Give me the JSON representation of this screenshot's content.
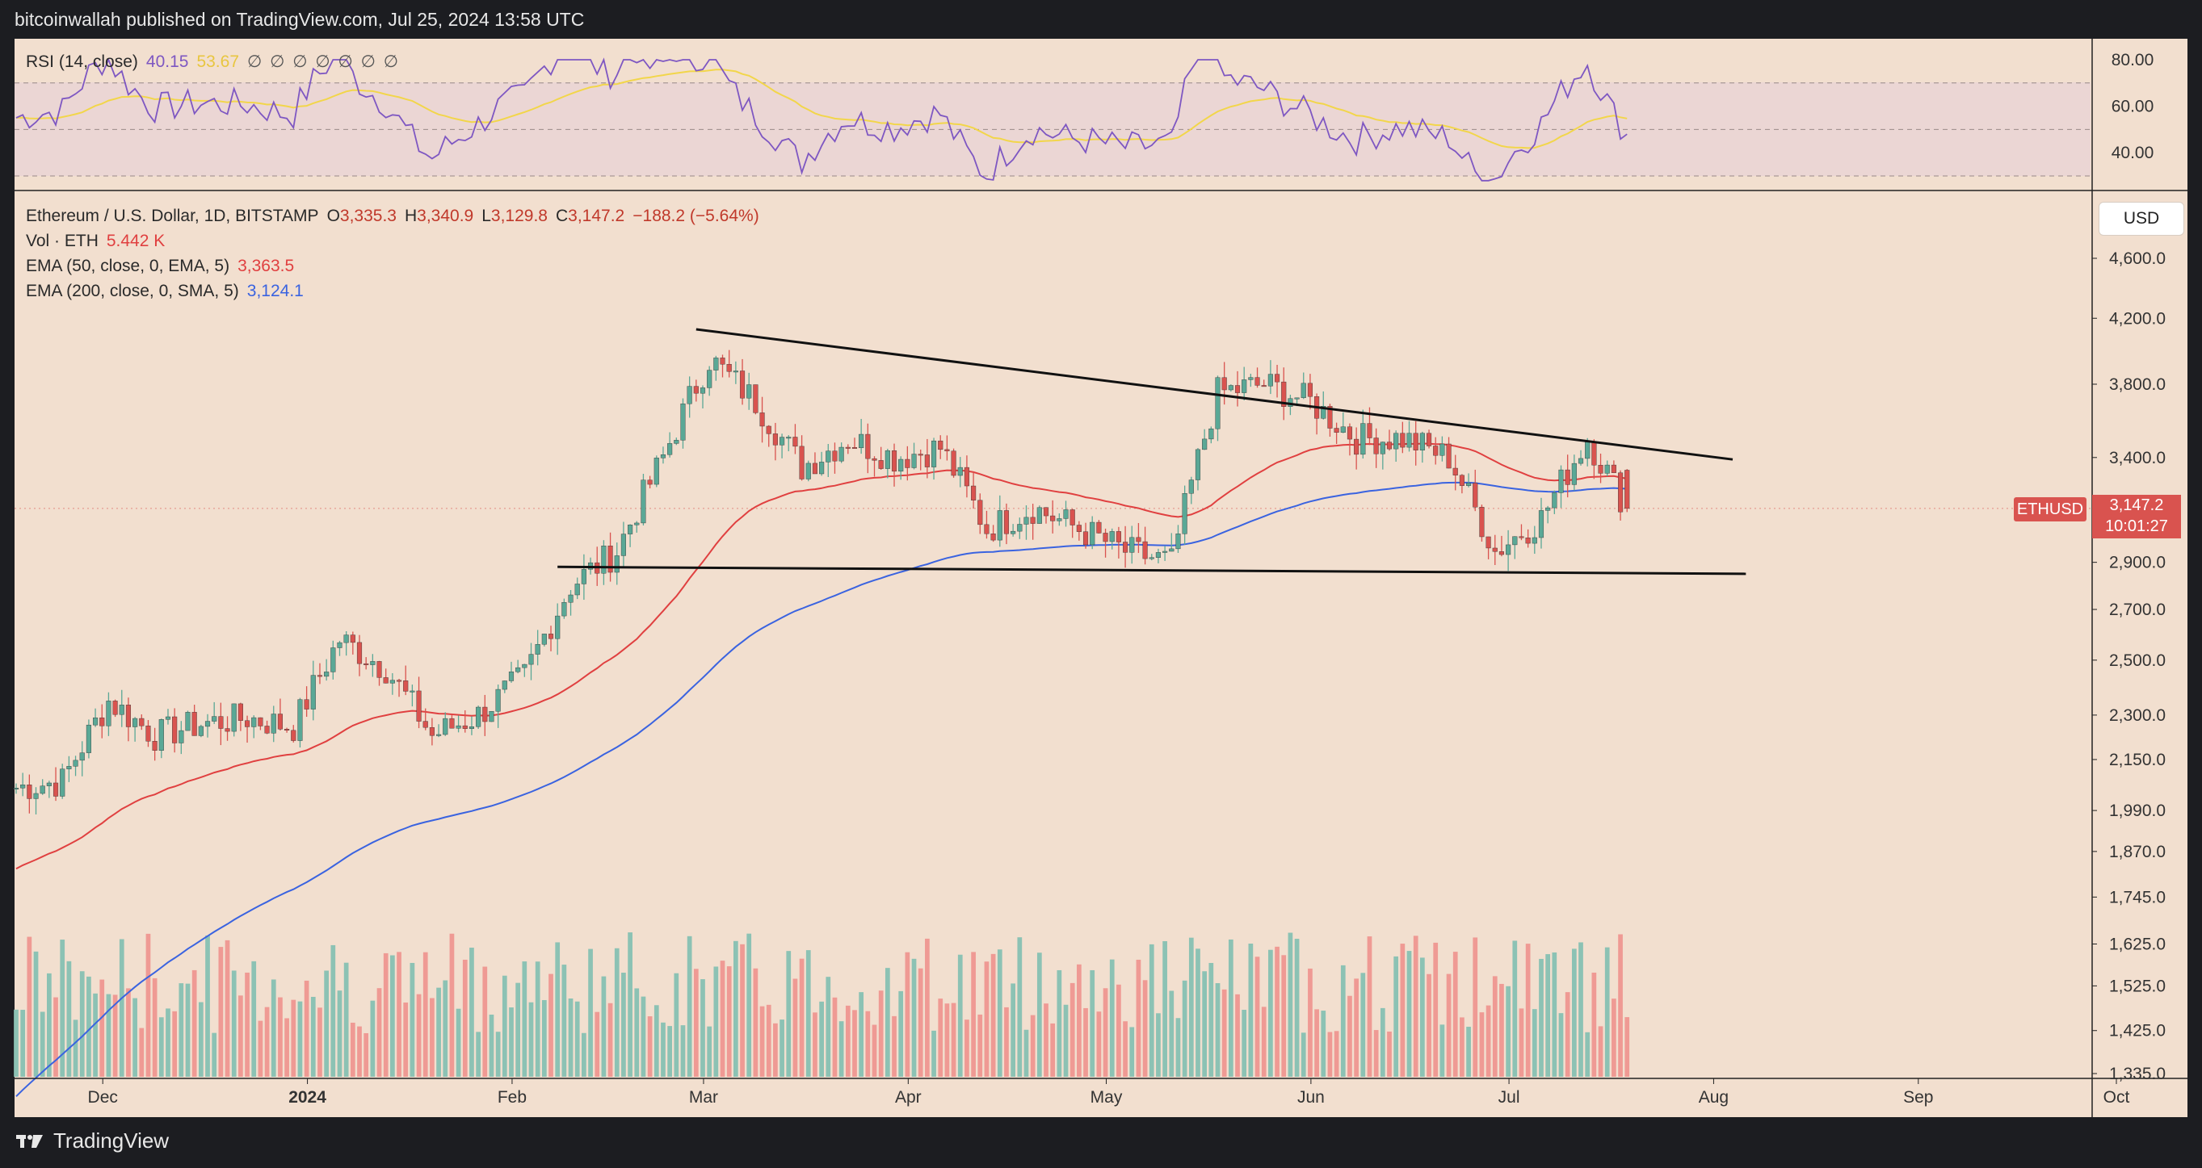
{
  "header": {
    "attribution": "bitcoinwallah published on TradingView.com, Jul 25, 2024 13:58 UTC"
  },
  "footer": {
    "brand": "TradingView"
  },
  "usd_button": "USD",
  "rsi_legend": {
    "name": "RSI (14, close)",
    "value": "40.15",
    "ma_value": "53.67",
    "extra": "∅ ∅ ∅ ∅ ∅ ∅ ∅"
  },
  "price_legend": {
    "symbol": "Ethereum / U.S. Dollar, 1D, BITSTAMP",
    "o_label": "O",
    "o": "3,335.3",
    "h_label": "H",
    "h": "3,340.9",
    "l_label": "L",
    "l": "3,129.8",
    "c_label": "C",
    "c": "3,147.2",
    "change": "−188.2 (−5.64%)",
    "vol_label": "Vol · ETH",
    "vol": "5.442 K",
    "ema50_label": "EMA (50, close, 0, EMA, 5)",
    "ema50": "3,363.5",
    "ema200_label": "EMA (200, close, 0, SMA, 5)",
    "ema200": "3,124.1"
  },
  "price_tag": {
    "symbol": "ETHUSD",
    "price": "3,147.2",
    "countdown": "10:01:27"
  },
  "colors": {
    "up": "#5aa896",
    "down": "#d9534f",
    "vol_up": "#8cc2b4",
    "vol_down": "#ef9a94",
    "ema50": "#e04040",
    "ema200": "#3a63e0",
    "rsi": "#7e57c2",
    "rsi_ma": "#f2d64a",
    "background": "#f2dfcf"
  },
  "chart_data": {
    "type": "candlestick",
    "symbol": "ETHUSD",
    "exchange": "BITSTAMP",
    "interval": "1D",
    "x_ticks": [
      "Dec",
      "2024",
      "Feb",
      "Mar",
      "Apr",
      "May",
      "Jun",
      "Jul",
      "Aug",
      "Sep",
      "Oct"
    ],
    "y_ticks": [
      "4,600.0",
      "4,200.0",
      "3,800.0",
      "3,400.0",
      "2,900.0",
      "2,700.0",
      "2,500.0",
      "2,300.0",
      "2,150.0",
      "1,990.0",
      "1,870.0",
      "1,745.0",
      "1,625.0",
      "1,525.0",
      "1,425.0",
      "1,335.0"
    ],
    "rsi_ticks": [
      "80.00",
      "60.00",
      "40.00"
    ],
    "ylim": [
      1335,
      4600
    ],
    "scale": "log",
    "last_close": 3147.2,
    "trendlines": [
      {
        "name": "descending resistance",
        "from": [
          "2024-03-06",
          4130
        ],
        "to": [
          "2024-08-10",
          3390
        ]
      },
      {
        "name": "horizontal support",
        "from": [
          "2024-02-14",
          2880
        ],
        "to": [
          "2024-08-12",
          2850
        ]
      }
    ],
    "closes_weekly_approx": [
      [
        "2023-11-24",
        2060
      ],
      [
        "2023-12-01",
        2080
      ],
      [
        "2023-12-08",
        2350
      ],
      [
        "2023-12-15",
        2230
      ],
      [
        "2023-12-22",
        2270
      ],
      [
        "2023-12-29",
        2290
      ],
      [
        "2024-01-05",
        2260
      ],
      [
        "2024-01-12",
        2580
      ],
      [
        "2024-01-19",
        2470
      ],
      [
        "2024-01-26",
        2230
      ],
      [
        "2024-02-02",
        2300
      ],
      [
        "2024-02-09",
        2440
      ],
      [
        "2024-02-16",
        2800
      ],
      [
        "2024-02-23",
        2950
      ],
      [
        "2024-03-01",
        3400
      ],
      [
        "2024-03-08",
        3950
      ],
      [
        "2024-03-15",
        3700
      ],
      [
        "2024-03-22",
        3350
      ],
      [
        "2024-03-29",
        3500
      ],
      [
        "2024-04-05",
        3400
      ],
      [
        "2024-04-12",
        3450
      ],
      [
        "2024-04-19",
        3050
      ],
      [
        "2024-04-26",
        3150
      ],
      [
        "2024-05-03",
        3050
      ],
      [
        "2024-05-10",
        2950
      ],
      [
        "2024-05-17",
        2900
      ],
      [
        "2024-05-24",
        3750
      ],
      [
        "2024-05-31",
        3800
      ],
      [
        "2024-06-07",
        3700
      ],
      [
        "2024-06-14",
        3500
      ],
      [
        "2024-06-21",
        3500
      ],
      [
        "2024-06-28",
        3400
      ],
      [
        "2024-07-05",
        2950
      ],
      [
        "2024-07-12",
        3100
      ],
      [
        "2024-07-19",
        3500
      ],
      [
        "2024-07-25",
        3147.2
      ]
    ]
  }
}
